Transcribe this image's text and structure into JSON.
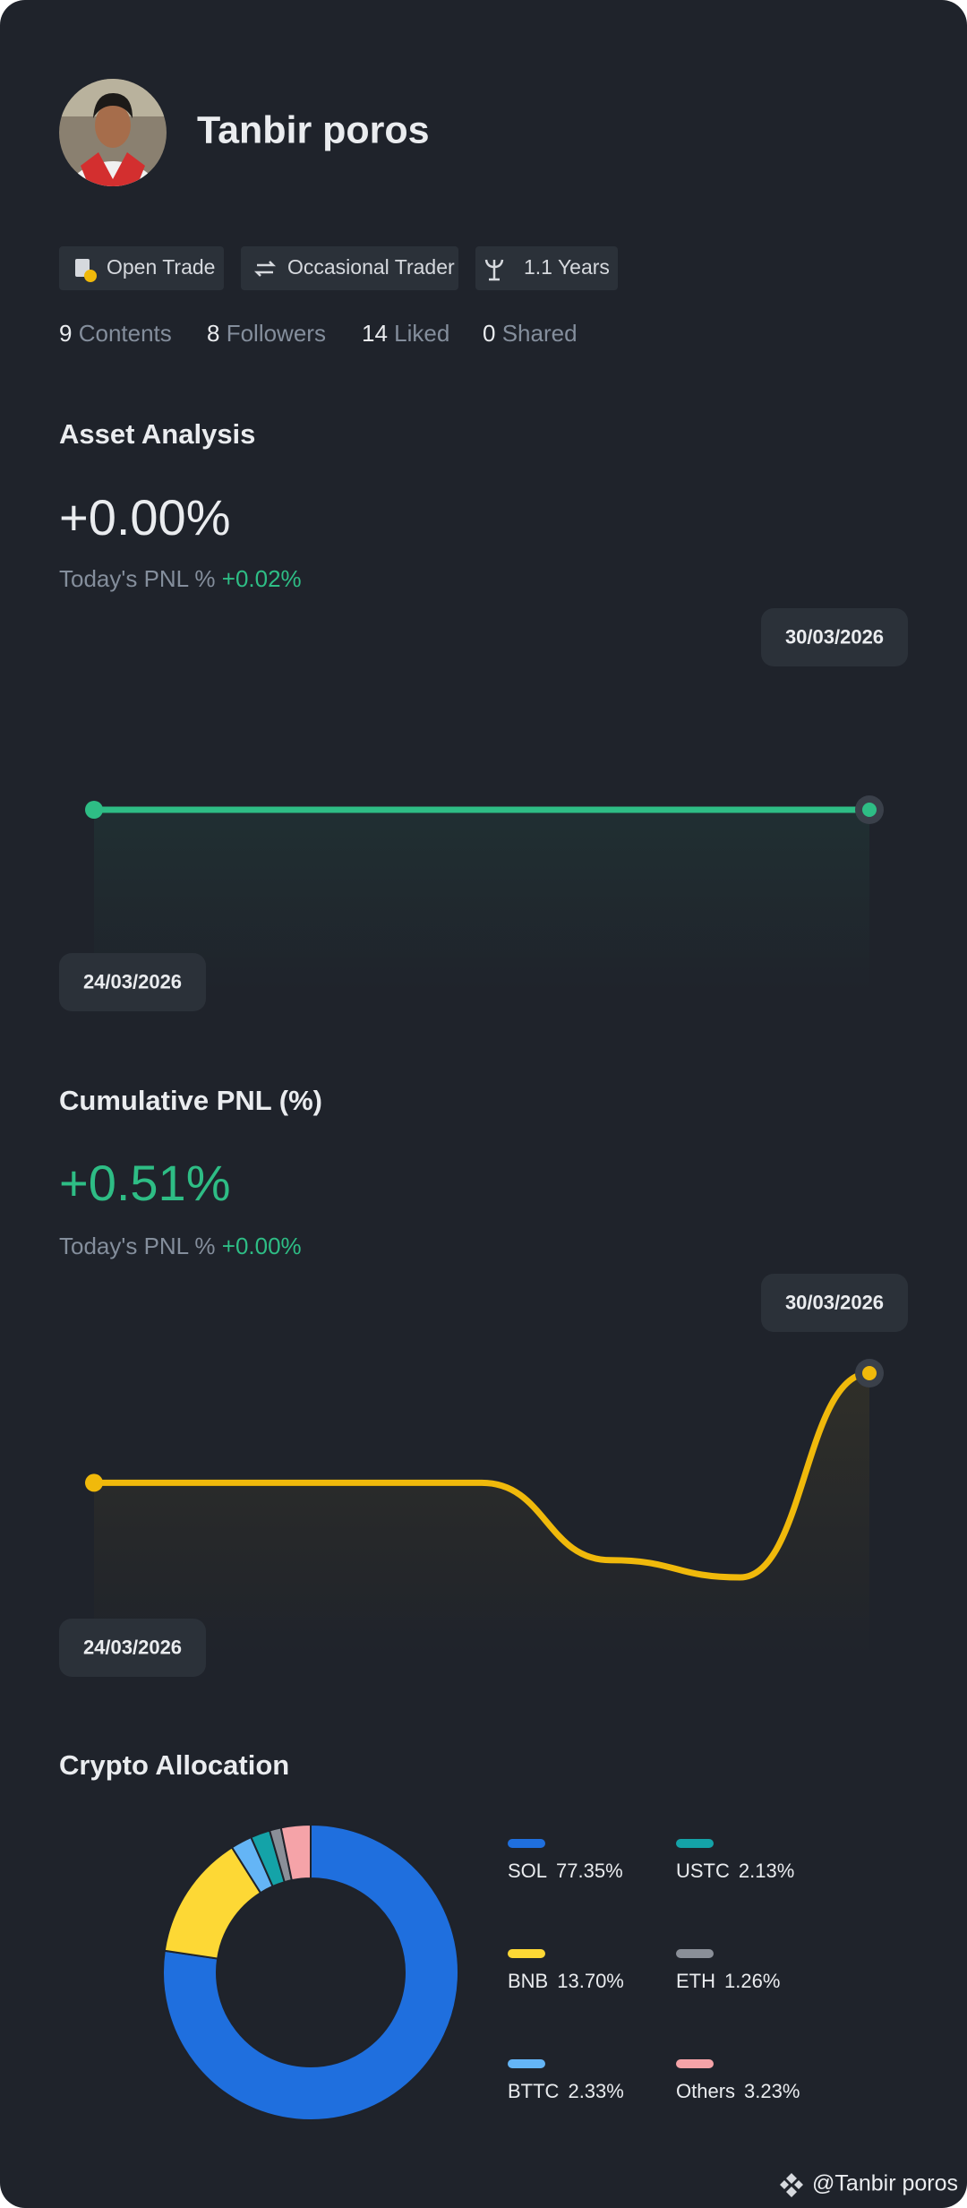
{
  "profile": {
    "name": "Tanbir poros",
    "tags": [
      "Open Trade",
      "Occasional Trader",
      "1.1 Years"
    ],
    "stats": [
      {
        "value": "9",
        "label": "Contents"
      },
      {
        "value": "8",
        "label": "Followers"
      },
      {
        "value": "14",
        "label": "Liked"
      },
      {
        "value": "0",
        "label": "Shared"
      }
    ]
  },
  "sections": [
    {
      "title": "Asset Analysis",
      "headline": "+0.00%",
      "sub_label": "Today's PNL %",
      "sub_value": "+0.02%"
    },
    {
      "title": "Cumulative PNL (%)",
      "headline": "+0.51%",
      "sub_label": "Today's PNL %",
      "sub_value": "+0.00%"
    },
    {
      "title": "Crypto Allocation"
    }
  ],
  "chart_data": [
    {
      "type": "line",
      "categories": [
        "24/03/2026",
        null,
        null,
        null,
        null,
        null,
        "30/03/2026"
      ],
      "values": [
        0,
        0,
        0,
        0,
        0,
        0,
        0
      ],
      "color": "#2ebd85"
    },
    {
      "type": "line",
      "categories": [
        "24/03/2026",
        null,
        null,
        null,
        null,
        null,
        "30/03/2026"
      ],
      "values": [
        0,
        0,
        0,
        0,
        -0.36,
        -0.44,
        0.51
      ],
      "color": "#f0b90b"
    },
    {
      "type": "pie",
      "categories": [
        "SOL",
        "BNB",
        "BTTC",
        "USTC",
        "ETH",
        "Others"
      ],
      "values": [
        77.35,
        13.7,
        2.33,
        2.13,
        1.26,
        3.23
      ],
      "value_labels": [
        "77.35%",
        "13.70%",
        "2.33%",
        "2.13%",
        "1.26%",
        "3.23%"
      ],
      "colors": [
        "#1f6fde",
        "#fdd835",
        "#64b5f6",
        "#14a3a8",
        "#8a8f98",
        "#f5a3a8"
      ]
    }
  ],
  "watermark": "@Tanbir poros"
}
